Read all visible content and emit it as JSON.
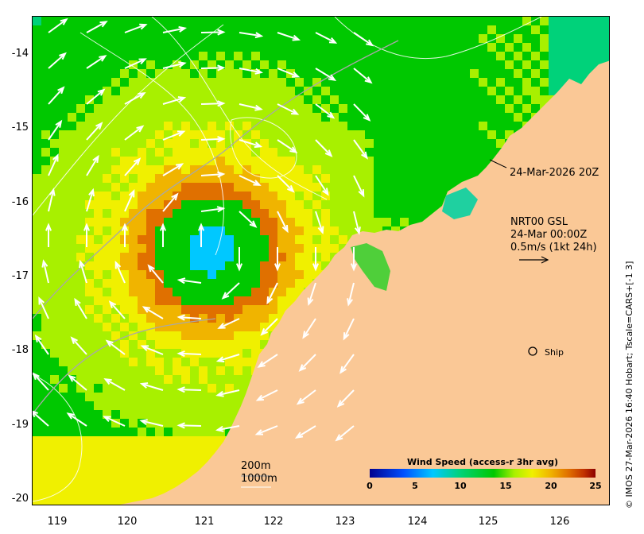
{
  "map": {
    "y_ticks": [
      "-14",
      "-15",
      "-16",
      "-17",
      "-18",
      "-19",
      "-20"
    ],
    "x_ticks": [
      "119",
      "120",
      "121",
      "122",
      "123",
      "124",
      "125",
      "126"
    ],
    "lon_range": [
      118.55,
      126.65
    ],
    "lat_range": [
      -13.45,
      -20.05
    ],
    "land_color": "#fac896",
    "vector_color": "#ffffff"
  },
  "annotations": {
    "contour_date": "24-Mar-2026 20Z",
    "product_line1": "NRT00 GSL",
    "product_line2": "24-Mar 00:00Z",
    "scale_label": "0.5m/s (1kt 24h)",
    "ship_label": "Ship",
    "depth_200": "200m",
    "depth_1000": "1000m"
  },
  "colorbar": {
    "title": "Wind Speed (access-r 3hr avg)",
    "ticks": [
      "0",
      "5",
      "10",
      "15",
      "20",
      "25"
    ],
    "min": 0,
    "max": 25
  },
  "credit": "© IMOS 27-Mar-2026 16:40 Hobart; Tscale=CARS+[-1 3]"
}
